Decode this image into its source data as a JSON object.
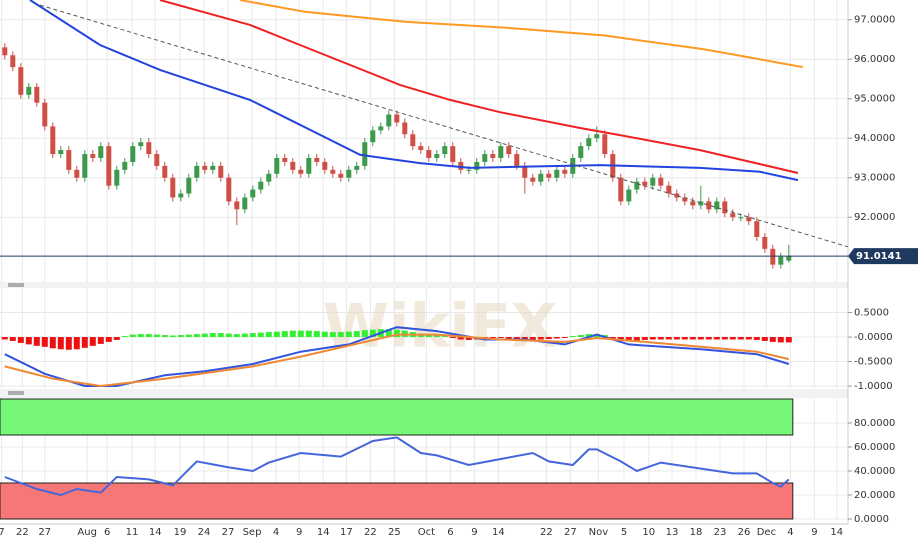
{
  "watermark": "WikiFX",
  "chart_data": [
    {
      "type": "candlestick",
      "ylim": [
        90.36,
        97.5
      ],
      "xlim": [
        -0.6,
        105.4
      ],
      "yticks": [
        {
          "value": 92,
          "label": "92.0000"
        },
        {
          "value": 93,
          "label": "93.0000"
        },
        {
          "value": 94,
          "label": "94.0000"
        },
        {
          "value": 95,
          "label": "95.0000"
        },
        {
          "value": 96,
          "label": "96.0000"
        },
        {
          "value": 97,
          "label": "97.0000"
        }
      ],
      "up_color": "#3d9a4c",
      "down_color": "#cf4f45",
      "ohlc": [
        [
          96.3,
          96.4,
          96.0,
          96.1
        ],
        [
          96.1,
          96.2,
          95.7,
          95.8
        ],
        [
          95.8,
          95.9,
          95.0,
          95.1
        ],
        [
          95.1,
          95.4,
          95.0,
          95.3
        ],
        [
          95.3,
          95.4,
          94.8,
          94.9
        ],
        [
          94.9,
          95.0,
          94.2,
          94.3
        ],
        [
          94.3,
          94.4,
          93.5,
          93.6
        ],
        [
          93.6,
          93.8,
          93.5,
          93.7
        ],
        [
          93.7,
          93.8,
          93.1,
          93.2
        ],
        [
          93.2,
          93.3,
          92.9,
          93.0
        ],
        [
          93.0,
          93.7,
          92.9,
          93.6
        ],
        [
          93.6,
          93.7,
          93.4,
          93.5
        ],
        [
          93.5,
          93.9,
          93.4,
          93.8
        ],
        [
          93.8,
          93.9,
          92.7,
          92.8
        ],
        [
          92.8,
          93.3,
          92.7,
          93.2
        ],
        [
          93.2,
          93.5,
          93.1,
          93.4
        ],
        [
          93.4,
          93.9,
          93.3,
          93.8
        ],
        [
          93.8,
          94.0,
          93.7,
          93.9
        ],
        [
          93.9,
          94.0,
          93.5,
          93.6
        ],
        [
          93.6,
          93.7,
          93.2,
          93.3
        ],
        [
          93.3,
          93.4,
          92.9,
          93.0
        ],
        [
          93.0,
          93.1,
          92.4,
          92.5
        ],
        [
          92.5,
          92.7,
          92.4,
          92.6
        ],
        [
          92.6,
          93.1,
          92.5,
          93.0
        ],
        [
          93.0,
          93.4,
          92.9,
          93.3
        ],
        [
          93.3,
          93.4,
          93.1,
          93.2
        ],
        [
          93.2,
          93.4,
          93.1,
          93.3
        ],
        [
          93.3,
          93.4,
          92.9,
          93.0
        ],
        [
          93.0,
          93.1,
          92.3,
          92.4
        ],
        [
          92.4,
          92.5,
          91.8,
          92.2
        ],
        [
          92.2,
          92.6,
          92.1,
          92.5
        ],
        [
          92.5,
          92.8,
          92.4,
          92.7
        ],
        [
          92.7,
          93.0,
          92.6,
          92.9
        ],
        [
          92.9,
          93.2,
          92.8,
          93.1
        ],
        [
          93.1,
          93.6,
          93.0,
          93.5
        ],
        [
          93.5,
          93.6,
          93.3,
          93.4
        ],
        [
          93.4,
          93.5,
          93.1,
          93.2
        ],
        [
          93.2,
          93.3,
          93.0,
          93.1
        ],
        [
          93.1,
          93.6,
          93.0,
          93.5
        ],
        [
          93.5,
          93.6,
          93.3,
          93.4
        ],
        [
          93.4,
          93.5,
          93.1,
          93.2
        ],
        [
          93.2,
          93.3,
          93.0,
          93.1
        ],
        [
          93.1,
          93.2,
          92.9,
          93.0
        ],
        [
          93.0,
          93.3,
          92.9,
          93.2
        ],
        [
          93.2,
          93.4,
          93.1,
          93.3
        ],
        [
          93.3,
          94.0,
          93.2,
          93.9
        ],
        [
          93.9,
          94.3,
          93.8,
          94.2
        ],
        [
          94.2,
          94.4,
          94.1,
          94.3
        ],
        [
          94.3,
          94.7,
          94.2,
          94.6
        ],
        [
          94.6,
          94.7,
          94.3,
          94.4
        ],
        [
          94.4,
          94.5,
          94.0,
          94.1
        ],
        [
          94.1,
          94.2,
          93.7,
          93.8
        ],
        [
          93.8,
          93.9,
          93.6,
          93.7
        ],
        [
          93.7,
          93.8,
          93.4,
          93.5
        ],
        [
          93.5,
          93.7,
          93.4,
          93.6
        ],
        [
          93.6,
          93.9,
          93.5,
          93.8
        ],
        [
          93.8,
          93.9,
          93.3,
          93.4
        ],
        [
          93.4,
          93.5,
          93.1,
          93.2
        ],
        [
          93.2,
          93.3,
          93.1,
          93.2
        ],
        [
          93.2,
          93.5,
          93.1,
          93.4
        ],
        [
          93.4,
          93.7,
          93.3,
          93.6
        ],
        [
          93.6,
          93.7,
          93.4,
          93.5
        ],
        [
          93.5,
          93.9,
          93.4,
          93.8
        ],
        [
          93.8,
          93.9,
          93.5,
          93.6
        ],
        [
          93.6,
          93.7,
          93.2,
          93.3
        ],
        [
          93.3,
          93.4,
          92.6,
          93.0
        ],
        [
          93.0,
          93.1,
          92.8,
          92.9
        ],
        [
          92.9,
          93.2,
          92.8,
          93.1
        ],
        [
          93.1,
          93.2,
          92.9,
          93.0
        ],
        [
          93.0,
          93.3,
          92.9,
          93.2
        ],
        [
          93.2,
          93.3,
          93.0,
          93.1
        ],
        [
          93.1,
          93.6,
          93.0,
          93.5
        ],
        [
          93.5,
          93.9,
          93.4,
          93.8
        ],
        [
          93.8,
          94.1,
          93.7,
          94.0
        ],
        [
          94.0,
          94.3,
          93.9,
          94.1
        ],
        [
          94.1,
          94.2,
          93.5,
          93.6
        ],
        [
          93.6,
          93.7,
          92.9,
          93.0
        ],
        [
          93.0,
          93.1,
          92.3,
          92.4
        ],
        [
          92.4,
          92.8,
          92.3,
          92.7
        ],
        [
          92.7,
          93.0,
          92.6,
          92.9
        ],
        [
          92.9,
          93.0,
          92.7,
          92.8
        ],
        [
          92.8,
          93.1,
          92.7,
          93.0
        ],
        [
          93.0,
          93.1,
          92.7,
          92.8
        ],
        [
          92.8,
          92.9,
          92.5,
          92.6
        ],
        [
          92.6,
          92.7,
          92.4,
          92.5
        ],
        [
          92.5,
          92.6,
          92.3,
          92.4
        ],
        [
          92.4,
          92.5,
          92.2,
          92.3
        ],
        [
          92.3,
          92.8,
          92.2,
          92.4
        ],
        [
          92.4,
          92.5,
          92.1,
          92.2
        ],
        [
          92.2,
          92.5,
          92.1,
          92.4
        ],
        [
          92.4,
          92.5,
          92.0,
          92.1
        ],
        [
          92.1,
          92.2,
          91.9,
          92.0
        ],
        [
          92.0,
          92.1,
          91.9,
          92.0
        ],
        [
          92.0,
          92.1,
          91.8,
          91.9
        ],
        [
          91.9,
          92.0,
          91.4,
          91.5
        ],
        [
          91.5,
          91.6,
          91.1,
          91.2
        ],
        [
          91.2,
          91.3,
          90.7,
          90.8
        ],
        [
          90.8,
          91.1,
          90.7,
          91.0
        ],
        [
          90.9,
          91.3,
          90.85,
          91.01
        ]
      ],
      "series": [
        {
          "color": "#ff9922",
          "x": [
            29.4,
            37.5,
            50,
            62.5,
            75,
            87.5,
            99.75
          ],
          "values": [
            97.5,
            97.2,
            96.95,
            96.8,
            96.6,
            96.25,
            95.8
          ]
        },
        {
          "color": "#ee2222",
          "x": [
            19.4,
            30.65,
            36.9,
            49.4,
            55.65,
            61.9,
            71.9,
            76.9,
            86.9,
            99.15
          ],
          "values": [
            97.5,
            96.87,
            96.36,
            95.35,
            94.97,
            94.66,
            94.26,
            94.08,
            93.7,
            93.12
          ]
        },
        {
          "color": "#2244dd",
          "x": [
            3.15,
            11.9,
            19.4,
            30.65,
            36.9,
            44.4,
            51.9,
            58.15,
            64.4,
            74.4,
            86.9,
            94.4,
            99.15
          ],
          "values": [
            97.5,
            96.36,
            95.73,
            94.97,
            94.34,
            93.58,
            93.37,
            93.25,
            93.28,
            93.32,
            93.25,
            93.15,
            92.94
          ]
        },
        {
          "color": "#555555",
          "style": "dashed",
          "x": [
            4.4,
            105.4
          ],
          "values": [
            97.37,
            91.25
          ]
        }
      ],
      "last_value": 91.0141,
      "last_color": "#1f3a60"
    },
    {
      "type": "macd",
      "ylim": [
        -1.04,
        1.0
      ],
      "xlim": [
        -0.6,
        105.4
      ],
      "yticks": [
        {
          "value": 0.5,
          "label": "0.5000"
        },
        {
          "value": 0,
          "label": "-0.0000"
        },
        {
          "value": -0.5,
          "label": "-0.5000"
        },
        {
          "value": -1,
          "label": "-1.0000"
        }
      ],
      "histogram": {
        "up_color": "#33ee33",
        "down_color": "#ee1111",
        "values": [
          -0.05,
          -0.08,
          -0.12,
          -0.15,
          -0.18,
          -0.2,
          -0.23,
          -0.25,
          -0.26,
          -0.25,
          -0.22,
          -0.18,
          -0.14,
          -0.1,
          -0.06,
          0.02,
          0.05,
          0.06,
          0.06,
          0.05,
          0.04,
          0.03,
          0.04,
          0.05,
          0.06,
          0.07,
          0.08,
          0.08,
          0.07,
          0.06,
          0.07,
          0.08,
          0.09,
          0.1,
          0.11,
          0.12,
          0.13,
          0.13,
          0.13,
          0.12,
          0.11,
          0.1,
          0.1,
          0.11,
          0.12,
          0.14,
          0.15,
          0.16,
          0.16,
          0.15,
          0.13,
          0.1,
          0.07,
          0.05,
          0.03,
          0.02,
          -0.02,
          -0.05,
          -0.06,
          -0.05,
          -0.03,
          -0.02,
          -0.02,
          -0.03,
          -0.05,
          -0.06,
          -0.06,
          -0.05,
          -0.04,
          -0.03,
          -0.02,
          0.02,
          0.04,
          0.06,
          0.06,
          0.04,
          -0.04,
          -0.08,
          -0.08,
          -0.07,
          -0.06,
          -0.05,
          -0.05,
          -0.05,
          -0.05,
          -0.05,
          -0.05,
          -0.05,
          -0.05,
          -0.05,
          -0.05,
          -0.05,
          -0.05,
          -0.05,
          -0.06,
          -0.08,
          -0.1,
          -0.11,
          -0.11
        ]
      },
      "series": [
        {
          "color": "#3355dd",
          "x": [
            0,
            5,
            10,
            14,
            20,
            25,
            31,
            37,
            43,
            49,
            54,
            60,
            65,
            70,
            74,
            78,
            87,
            94,
            98
          ],
          "values": [
            -0.35,
            -0.75,
            -1.0,
            -1.0,
            -0.78,
            -0.7,
            -0.55,
            -0.3,
            -0.15,
            0.2,
            0.12,
            -0.05,
            -0.05,
            -0.15,
            0.05,
            -0.15,
            -0.25,
            -0.35,
            -0.55
          ]
        },
        {
          "color": "#ee8833",
          "x": [
            0,
            6,
            12,
            20,
            31,
            37,
            49,
            54,
            62,
            70,
            74,
            80,
            87,
            94,
            98
          ],
          "values": [
            -0.6,
            -0.85,
            -1.0,
            -0.85,
            -0.6,
            -0.4,
            0.05,
            0.05,
            -0.05,
            -0.1,
            -0.02,
            -0.1,
            -0.2,
            -0.3,
            -0.45
          ]
        }
      ]
    },
    {
      "type": "rsi",
      "ylim": [
        0,
        100
      ],
      "xlim": [
        -0.6,
        105.4
      ],
      "yticks": [
        {
          "value": 0,
          "label": "0.0000"
        },
        {
          "value": 20,
          "label": "20.0000"
        },
        {
          "value": 40,
          "label": "40.0000"
        },
        {
          "value": 60,
          "label": "60.0000"
        },
        {
          "value": 80,
          "label": "80.0000"
        }
      ],
      "zones": [
        {
          "from": 70,
          "to": 100,
          "color": "#77f777"
        },
        {
          "from": 0,
          "to": 30,
          "color": "#f77777"
        }
      ],
      "series": [
        {
          "color": "#4466dd",
          "x": [
            0,
            2,
            4,
            7,
            9,
            12,
            14,
            18,
            21,
            24,
            28,
            31,
            33,
            37,
            42,
            46,
            49,
            52,
            54,
            58,
            62,
            66,
            68,
            71,
            73,
            74,
            77,
            79,
            82,
            87,
            91,
            94,
            96,
            97,
            98
          ],
          "values": [
            35,
            30,
            25,
            20,
            25,
            22,
            35,
            33,
            28,
            48,
            43,
            40,
            47,
            55,
            52,
            65,
            68,
            55,
            53,
            45,
            50,
            55,
            48,
            45,
            58,
            58,
            48,
            40,
            47,
            42,
            38,
            38,
            30,
            27,
            33
          ]
        }
      ],
      "xticks": [
        {
          "value": -0.4,
          "label": "7"
        },
        {
          "value": 2.2,
          "label": "22"
        },
        {
          "value": 5.0,
          "label": "27"
        },
        {
          "value": 10.3,
          "label": "Aug"
        },
        {
          "value": 12.8,
          "label": "6"
        },
        {
          "value": 15.9,
          "label": "11"
        },
        {
          "value": 18.8,
          "label": "14"
        },
        {
          "value": 21.9,
          "label": "19"
        },
        {
          "value": 24.9,
          "label": "24"
        },
        {
          "value": 27.9,
          "label": "27"
        },
        {
          "value": 30.9,
          "label": "Sep"
        },
        {
          "value": 33.9,
          "label": "4"
        },
        {
          "value": 36.8,
          "label": "9"
        },
        {
          "value": 39.8,
          "label": "14"
        },
        {
          "value": 42.7,
          "label": "17"
        },
        {
          "value": 45.7,
          "label": "22"
        },
        {
          "value": 48.7,
          "label": "25"
        },
        {
          "value": 52.7,
          "label": "Oct"
        },
        {
          "value": 55.7,
          "label": "6"
        },
        {
          "value": 58.7,
          "label": "9"
        },
        {
          "value": 61.7,
          "label": "14"
        },
        {
          "value": 67.7,
          "label": "22"
        },
        {
          "value": 70.7,
          "label": "27"
        },
        {
          "value": 74.2,
          "label": "Nov"
        },
        {
          "value": 77.4,
          "label": "5"
        },
        {
          "value": 80.5,
          "label": "10"
        },
        {
          "value": 83.4,
          "label": "13"
        },
        {
          "value": 86.4,
          "label": "18"
        },
        {
          "value": 89.4,
          "label": "23"
        },
        {
          "value": 92.4,
          "label": "26"
        },
        {
          "value": 95.2,
          "label": "Dec"
        },
        {
          "value": 98.2,
          "label": "4"
        },
        {
          "value": 101.2,
          "label": "9"
        },
        {
          "value": 104.0,
          "label": "14"
        }
      ]
    }
  ]
}
